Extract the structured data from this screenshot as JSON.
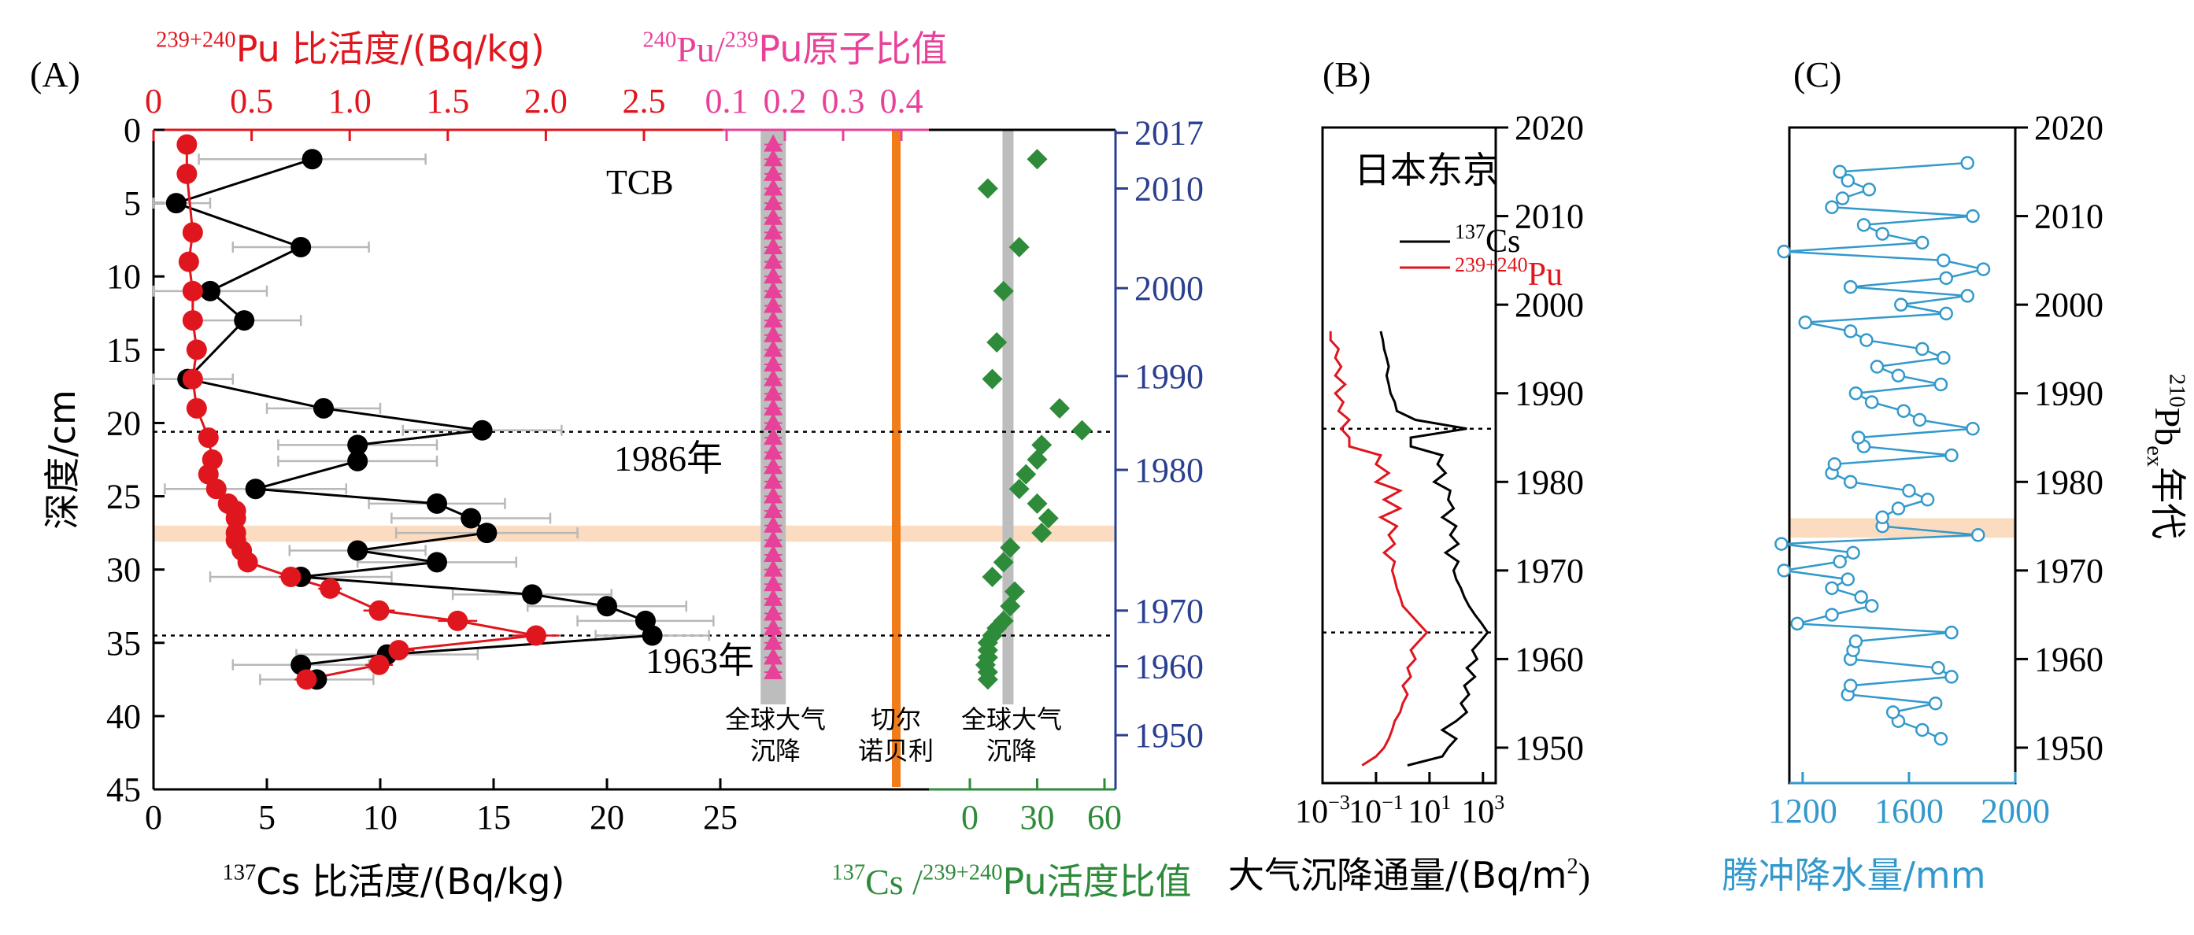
{
  "colors": {
    "black": "#000000",
    "pu_red": "#e0161e",
    "ratio_pink": "#e8419a",
    "cspu_green": "#2e8b3a",
    "year_blue": "#2b3f8f",
    "rain_blue": "#3399cc",
    "grey_band": "#bdbdbd",
    "orange_line": "#f07c1a",
    "highlight": "#fbdcc0",
    "error_bar": "#b8b8b8"
  },
  "chart_data": [
    {
      "panel": "(A)",
      "type": "scatter",
      "site_label": "TCB",
      "axes": {
        "left_label": "深度/cm",
        "left_range": [
          0,
          45
        ],
        "left_ticks": [
          0,
          5,
          10,
          15,
          20,
          25,
          30,
          35,
          40,
          45
        ],
        "bottom_label": {
          "sup": "137",
          "main": "Cs 比活度/(Bq/kg)"
        },
        "bottom_range": [
          0,
          28
        ],
        "bottom_ticks": [
          0,
          5,
          10,
          15,
          20,
          25
        ],
        "top_pu_label": {
          "sup": "239+240",
          "main": "Pu 比活度/(Bq/kg)"
        },
        "top_pu_range": [
          0,
          2.6
        ],
        "top_pu_ticks": [
          "0",
          "0.5",
          "1.0",
          "1.5",
          "2.0",
          "2.5"
        ],
        "top_ratio_label": {
          "sup1": "240",
          "mid": "Pu/",
          "sup2": "239",
          "main": "Pu原子比值"
        },
        "top_ratio_ticks": [
          "0.1",
          "0.2",
          "0.3",
          "0.4"
        ],
        "bottom_cspu_label": {
          "sup1": "137",
          "mid": "Cs /",
          "sup2": "239+240",
          "main": "Pu活度比值"
        },
        "bottom_cspu_range": [
          -10,
          65
        ],
        "bottom_cspu_ticks": [
          0,
          30,
          60
        ],
        "right_label": "",
        "right_ticks": [
          2017,
          2010,
          2000,
          1990,
          1980,
          1970,
          1960,
          1950
        ],
        "right_tick_depths": [
          0.2,
          4.0,
          10.8,
          16.8,
          23.2,
          32.8,
          36.6,
          41.3
        ]
      },
      "markers": [
        {
          "label": "1986年",
          "depth": 20.6
        },
        {
          "label": "1963年",
          "depth": 34.5
        }
      ],
      "highlight_depth": [
        27.0,
        28.1
      ],
      "band_labels": {
        "global_fallout_1": [
          "全球大气",
          "沉降"
        ],
        "chernobyl": [
          "切尔",
          "诺贝利"
        ],
        "global_fallout_2": [
          "全球大气",
          "沉降"
        ]
      },
      "series": [
        {
          "name": "137Cs",
          "depth": [
            2.0,
            5.0,
            8.0,
            11.0,
            13.0,
            17.0,
            19.0,
            20.5,
            21.5,
            22.6,
            24.5,
            25.5,
            26.5,
            27.5,
            28.7,
            29.5,
            30.5,
            31.7,
            32.5,
            33.5,
            34.5,
            35.8,
            36.5,
            37.5
          ],
          "cs": [
            7.0,
            1.0,
            6.5,
            2.5,
            4.0,
            1.5,
            7.5,
            14.5,
            9.0,
            9.0,
            4.5,
            12.5,
            14.0,
            14.7,
            9.0,
            12.5,
            6.5,
            16.7,
            20.0,
            21.7,
            22.0,
            10.3,
            6.5,
            7.2
          ],
          "err": [
            5.0,
            1.5,
            3.0,
            2.5,
            2.5,
            2.0,
            2.5,
            3.5,
            3.5,
            3.5,
            4.0,
            3.0,
            3.5,
            4.0,
            3.0,
            3.5,
            4.0,
            3.5,
            3.5,
            3.0,
            2.5,
            4.0,
            3.0,
            2.5
          ]
        },
        {
          "name": "239+240Pu",
          "depth": [
            1.0,
            3.0,
            7.0,
            9.0,
            11.0,
            13.0,
            15.0,
            17.0,
            19.0,
            21.0,
            22.5,
            23.5,
            24.5,
            25.5,
            26.0,
            26.5,
            27.5,
            28.0,
            28.7,
            29.5,
            30.5,
            31.3,
            32.8,
            33.5,
            34.5,
            35.5,
            36.5,
            37.5
          ],
          "pu": [
            0.17,
            0.17,
            0.2,
            0.18,
            0.2,
            0.2,
            0.22,
            0.2,
            0.22,
            0.28,
            0.3,
            0.28,
            0.32,
            0.38,
            0.42,
            0.42,
            0.42,
            0.42,
            0.45,
            0.48,
            0.7,
            0.9,
            1.15,
            1.55,
            1.95,
            1.25,
            1.15,
            0.78
          ],
          "err": [
            0.03,
            0.03,
            0.03,
            0.03,
            0.03,
            0.03,
            0.03,
            0.03,
            0.03,
            0.03,
            0.04,
            0.04,
            0.04,
            0.04,
            0.04,
            0.04,
            0.04,
            0.04,
            0.04,
            0.05,
            0.06,
            0.06,
            0.08,
            0.1,
            0.12,
            0.08,
            0.07,
            0.06
          ]
        },
        {
          "name": "240Pu/239Pu",
          "depth": [
            1,
            2,
            3,
            4,
            5,
            6,
            7,
            8,
            9,
            10,
            11,
            12,
            13,
            14,
            15,
            16,
            17,
            18,
            19,
            20,
            21,
            22,
            23,
            24,
            25,
            26,
            27,
            28,
            29,
            30,
            31,
            32,
            33,
            34,
            35,
            36,
            37
          ],
          "ratio": [
            0.18,
            0.18,
            0.18,
            0.18,
            0.18,
            0.18,
            0.18,
            0.18,
            0.18,
            0.18,
            0.18,
            0.18,
            0.18,
            0.18,
            0.18,
            0.18,
            0.18,
            0.18,
            0.18,
            0.18,
            0.18,
            0.18,
            0.18,
            0.18,
            0.18,
            0.18,
            0.18,
            0.18,
            0.18,
            0.18,
            0.18,
            0.18,
            0.18,
            0.18,
            0.18,
            0.18,
            0.18
          ],
          "err": 0.015
        },
        {
          "name": "137Cs/239+240Pu",
          "depth": [
            2.0,
            4.0,
            8.0,
            11.0,
            14.5,
            17.0,
            19.0,
            20.5,
            21.5,
            22.5,
            23.5,
            24.5,
            25.5,
            26.5,
            27.5,
            28.5,
            29.5,
            30.5,
            31.5,
            32.5,
            33.5,
            34.0,
            34.5,
            35.0,
            35.5,
            36.0,
            36.5,
            37.0,
            37.5
          ],
          "ratio": [
            30,
            8,
            22,
            15,
            12,
            10,
            40,
            50,
            32,
            30,
            25,
            22,
            30,
            35,
            32,
            18,
            15,
            10,
            20,
            18,
            15,
            12,
            10,
            8,
            8,
            8,
            7,
            8,
            8
          ]
        }
      ]
    },
    {
      "panel": "(B)",
      "type": "line",
      "location": "日本东京",
      "xlabel": {
        "main": "大气沉降通量/(Bq/m",
        "sup": "2",
        "close": ")"
      },
      "x_scale": "log",
      "x_ticks": [
        {
          "base": "10",
          "exp": "−3",
          "value": 0.001
        },
        {
          "base": "10",
          "exp": "−1",
          "value": 0.1
        },
        {
          "base": "10",
          "exp": "1",
          "value": 10
        },
        {
          "base": "10",
          "exp": "3",
          "value": 1000
        }
      ],
      "x_range": [
        0.001,
        3000
      ],
      "year_range": [
        1946,
        2020
      ],
      "year_ticks": [
        2020,
        2010,
        2000,
        1990,
        1980,
        1970,
        1960,
        1950
      ],
      "ref_lines": [
        1986,
        1963
      ],
      "legend": [
        {
          "sup": "137",
          "main": "Cs"
        },
        {
          "sup": "239+240",
          "main": "Pu"
        }
      ],
      "series": [
        {
          "name": "137Cs",
          "years": [
            1948,
            1949,
            1950,
            1951,
            1952,
            1953,
            1954,
            1955,
            1956,
            1957,
            1958,
            1959,
            1960,
            1961,
            1962,
            1963,
            1964,
            1965,
            1966,
            1967,
            1968,
            1969,
            1970,
            1971,
            1972,
            1973,
            1974,
            1975,
            1976,
            1977,
            1978,
            1979,
            1980,
            1981,
            1982,
            1983,
            1984,
            1985,
            1986,
            1987,
            1988,
            1989,
            1990,
            1991,
            1992,
            1993,
            1994,
            1995,
            1996,
            1997
          ],
          "values": [
            1.5,
            30,
            50,
            100,
            30,
            100,
            250,
            150,
            300,
            200,
            500,
            250,
            600,
            400,
            800,
            1500,
            900,
            500,
            300,
            200,
            150,
            100,
            80,
            120,
            40,
            120,
            60,
            100,
            30,
            80,
            50,
            60,
            15,
            40,
            20,
            30,
            2,
            2,
            250,
            3,
            0.6,
            0.5,
            0.35,
            0.3,
            0.25,
            0.3,
            0.25,
            0.2,
            0.18,
            0.15
          ]
        },
        {
          "name": "239+240Pu",
          "years": [
            1948,
            1949,
            1950,
            1951,
            1952,
            1953,
            1954,
            1955,
            1956,
            1957,
            1958,
            1959,
            1960,
            1961,
            1962,
            1963,
            1964,
            1965,
            1966,
            1967,
            1968,
            1969,
            1970,
            1971,
            1972,
            1973,
            1974,
            1975,
            1976,
            1977,
            1978,
            1979,
            1980,
            1981,
            1982,
            1983,
            1984,
            1985,
            1986,
            1987,
            1988,
            1989,
            1990,
            1991,
            1992,
            1993,
            1994,
            1995,
            1996,
            1997
          ],
          "values": [
            0.03,
            0.1,
            0.2,
            0.3,
            0.4,
            0.5,
            0.8,
            1.0,
            1.5,
            1.0,
            2.0,
            1.5,
            3.0,
            2.0,
            4.0,
            8.0,
            4.0,
            2.0,
            1.0,
            0.8,
            0.6,
            0.5,
            0.4,
            0.5,
            0.2,
            0.5,
            0.3,
            0.6,
            0.15,
            0.8,
            0.2,
            0.8,
            0.1,
            0.3,
            0.1,
            0.15,
            0.01,
            0.01,
            0.005,
            0.01,
            0.004,
            0.006,
            0.003,
            0.007,
            0.003,
            0.005,
            0.003,
            0.004,
            0.002,
            0.002
          ]
        }
      ]
    },
    {
      "panel": "(C)",
      "type": "line",
      "xlabel": "腾冲降水量/mm",
      "x_range": [
        1150,
        2000
      ],
      "x_ticks": [
        1200,
        1600,
        2000
      ],
      "year_range": [
        1946,
        2020
      ],
      "year_ticks": [
        2020,
        2010,
        2000,
        1990,
        1980,
        1970,
        1960,
        1950
      ],
      "right_label": {
        "sup": "210",
        "main": "Pb",
        "sub": "ex",
        "tail": "年代"
      },
      "highlight_years": [
        1973.7,
        1975.9
      ],
      "series": [
        {
          "name": "precipitation",
          "years": [
            1951,
            1952,
            1953,
            1954,
            1955,
            1956,
            1957,
            1958,
            1959,
            1960,
            1961,
            1962,
            1963,
            1964,
            1965,
            1966,
            1967,
            1968,
            1969,
            1970,
            1971,
            1972,
            1973,
            1974,
            1975,
            1976,
            1977,
            1978,
            1979,
            1980,
            1981,
            1982,
            1983,
            1984,
            1985,
            1986,
            1987,
            1988,
            1989,
            1990,
            1991,
            1992,
            1993,
            1994,
            1995,
            1996,
            1997,
            1998,
            1999,
            2000,
            2001,
            2002,
            2003,
            2004,
            2005,
            2006,
            2007,
            2008,
            2009,
            2010,
            2011,
            2012,
            2013,
            2014,
            2015,
            2016
          ],
          "values": [
            1720,
            1650,
            1560,
            1540,
            1700,
            1370,
            1380,
            1760,
            1710,
            1380,
            1390,
            1400,
            1760,
            1180,
            1310,
            1460,
            1420,
            1310,
            1370,
            1130,
            1340,
            1390,
            1120,
            1860,
            1500,
            1500,
            1560,
            1670,
            1600,
            1380,
            1310,
            1320,
            1760,
            1430,
            1410,
            1840,
            1640,
            1580,
            1460,
            1400,
            1720,
            1560,
            1480,
            1730,
            1650,
            1440,
            1380,
            1210,
            1740,
            1570,
            1820,
            1380,
            1740,
            1880,
            1730,
            1130,
            1650,
            1500,
            1430,
            1840,
            1310,
            1350,
            1450,
            1370,
            1340,
            1820
          ]
        }
      ]
    }
  ]
}
